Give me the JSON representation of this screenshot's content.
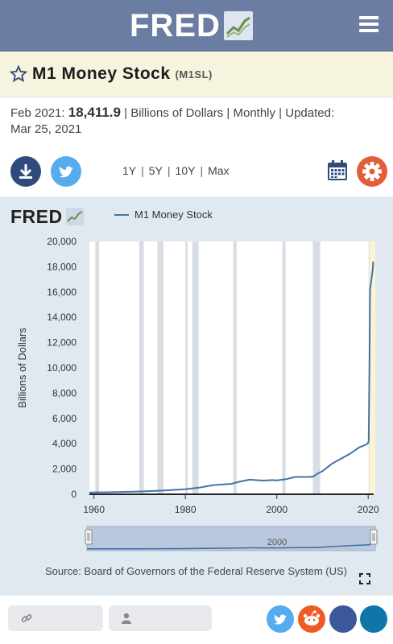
{
  "header": {
    "logo_text": "FRED",
    "logo_icon": "fred-chart-logo-icon",
    "menu_icon": "hamburger-menu-icon"
  },
  "series": {
    "title": "M1 Money Stock",
    "code": "(M1SL)",
    "observation_date": "Feb 2021:",
    "value": "18,411.9",
    "details": "| Billions of Dollars | Monthly | Updated:",
    "updated": "Mar 25, 2021"
  },
  "toolbar": {
    "ranges": [
      "1Y",
      "5Y",
      "10Y",
      "Max"
    ],
    "separator": "|",
    "download_icon": "download-icon",
    "twitter_icon": "twitter-icon",
    "calendar_icon": "calendar-icon",
    "settings_icon": "gear-icon"
  },
  "graph": {
    "brand_text": "FRED",
    "legend_label": "M1 Money Stock",
    "source": "Source: Board of Governors of the Federal Reserve System (US)",
    "navigator_label": "2000",
    "colors": {
      "line": "#4572a7",
      "recession": "#d8dde3",
      "panel_bg": "#e1e9f0",
      "plot_bg": "#ffffff",
      "highlight": "#fbf4cf"
    }
  },
  "chart_data": {
    "type": "line",
    "title": "",
    "xlabel": "",
    "ylabel": "Billions of Dollars",
    "xlim": [
      1959,
      2021.2
    ],
    "ylim": [
      0,
      20000
    ],
    "y_ticks": [
      0,
      2000,
      4000,
      6000,
      8000,
      10000,
      12000,
      14000,
      16000,
      18000,
      20000
    ],
    "y_tick_labels": [
      "0",
      "2,000",
      "4,000",
      "6,000",
      "8,000",
      "10,000",
      "12,000",
      "14,000",
      "16,000",
      "18,000",
      "20,000"
    ],
    "x_ticks": [
      1960,
      1980,
      2000,
      2020
    ],
    "x_tick_labels": [
      "1960",
      "1980",
      "2000",
      "2020"
    ],
    "grid": false,
    "legend": "top-left",
    "recessions": [
      [
        1960.3,
        1961.1
      ],
      [
        1969.9,
        1970.9
      ],
      [
        1973.9,
        1975.2
      ],
      [
        1980.0,
        1980.5
      ],
      [
        1981.5,
        1982.9
      ],
      [
        1990.5,
        1991.2
      ],
      [
        2001.2,
        2001.9
      ],
      [
        2007.9,
        2009.5
      ],
      [
        2020.1,
        2020.3
      ]
    ],
    "series": [
      {
        "name": "M1 Money Stock",
        "x": [
          1959.0,
          1965.0,
          1970.0,
          1975.0,
          1980.0,
          1983.0,
          1986.0,
          1987.0,
          1990.0,
          1992.0,
          1994.0,
          1995.0,
          1997.0,
          1999.0,
          2000.0,
          2002.0,
          2004.0,
          2007.0,
          2008.0,
          2009.0,
          2010.0,
          2012.0,
          2014.0,
          2016.0,
          2018.0,
          2019.0,
          2019.9,
          2020.1,
          2020.3,
          2020.4,
          2021.0,
          2021.1
        ],
        "y": [
          140,
          170,
          215,
          290,
          400,
          520,
          720,
          750,
          820,
          1010,
          1150,
          1130,
          1080,
          1120,
          1100,
          1190,
          1370,
          1370,
          1400,
          1650,
          1830,
          2400,
          2800,
          3200,
          3700,
          3850,
          4000,
          4200,
          11000,
          16200,
          17800,
          18412
        ]
      }
    ]
  }
}
